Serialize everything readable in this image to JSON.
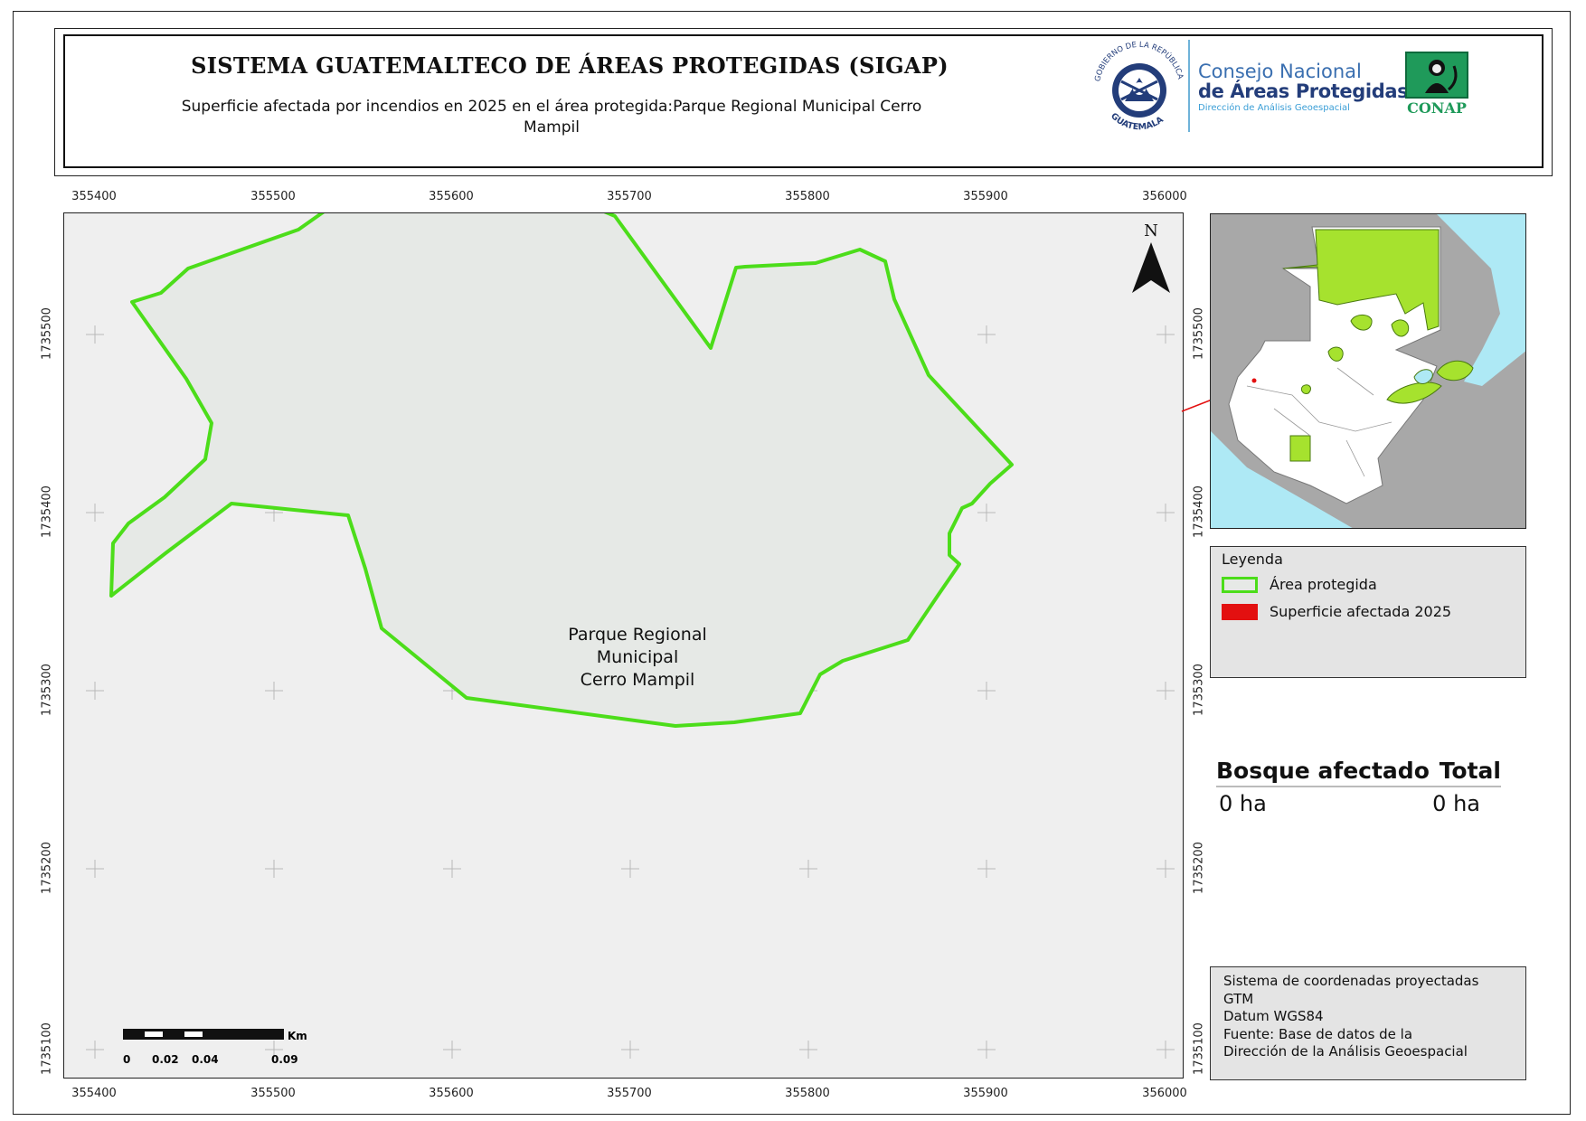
{
  "header": {
    "title": "SISTEMA GUATEMALTECO DE ÁREAS PROTEGIDAS (SIGAP)",
    "subtitle_line1": "Superficie afectada por incendios en 2025 en el área protegida:Parque Regional Municipal Cerro",
    "subtitle_line2": "Mampil"
  },
  "logos": {
    "seal_top_text": "GOBIERNO DE LA REPÚBLICA",
    "seal_bottom_text": "GUATEMALA",
    "conap_line1": "Consejo Nacional",
    "conap_line2": "de Áreas Protegidas",
    "conap_line3": "Dirección de Análisis Geoespacial",
    "conap_short": "CONAP"
  },
  "map": {
    "x_ticks": [
      "355400",
      "355500",
      "355600",
      "355700",
      "355800",
      "355900",
      "356000"
    ],
    "y_ticks": [
      "1735500",
      "1735400",
      "1735300",
      "1735200",
      "1735100"
    ],
    "area_label": [
      "Parque Regional",
      "Municipal",
      "Cerro Mampil"
    ],
    "north_label": "N",
    "scale": {
      "unit": "Km",
      "labels": [
        "0",
        "0.02",
        "0.04",
        "0.09"
      ]
    },
    "boundary_color": "#4cdd1a",
    "fill_color": "#e6e9e6"
  },
  "legend": {
    "title": "Leyenda",
    "items": [
      {
        "label": "Área protegida",
        "color": "#4cdd1a"
      },
      {
        "label": "Superficie afectada 2025",
        "color": "#e31010"
      }
    ]
  },
  "stats": {
    "header_left": "Bosque afectado",
    "header_right": "Total",
    "value_left": "0 ha",
    "value_right": "0 ha"
  },
  "crs": {
    "lines": [
      "Sistema de coordenadas proyectadas",
      "GTM",
      "Datum WGS84",
      "Fuente: Base de datos de la",
      "Dirección de la Análisis Geoespacial"
    ]
  }
}
